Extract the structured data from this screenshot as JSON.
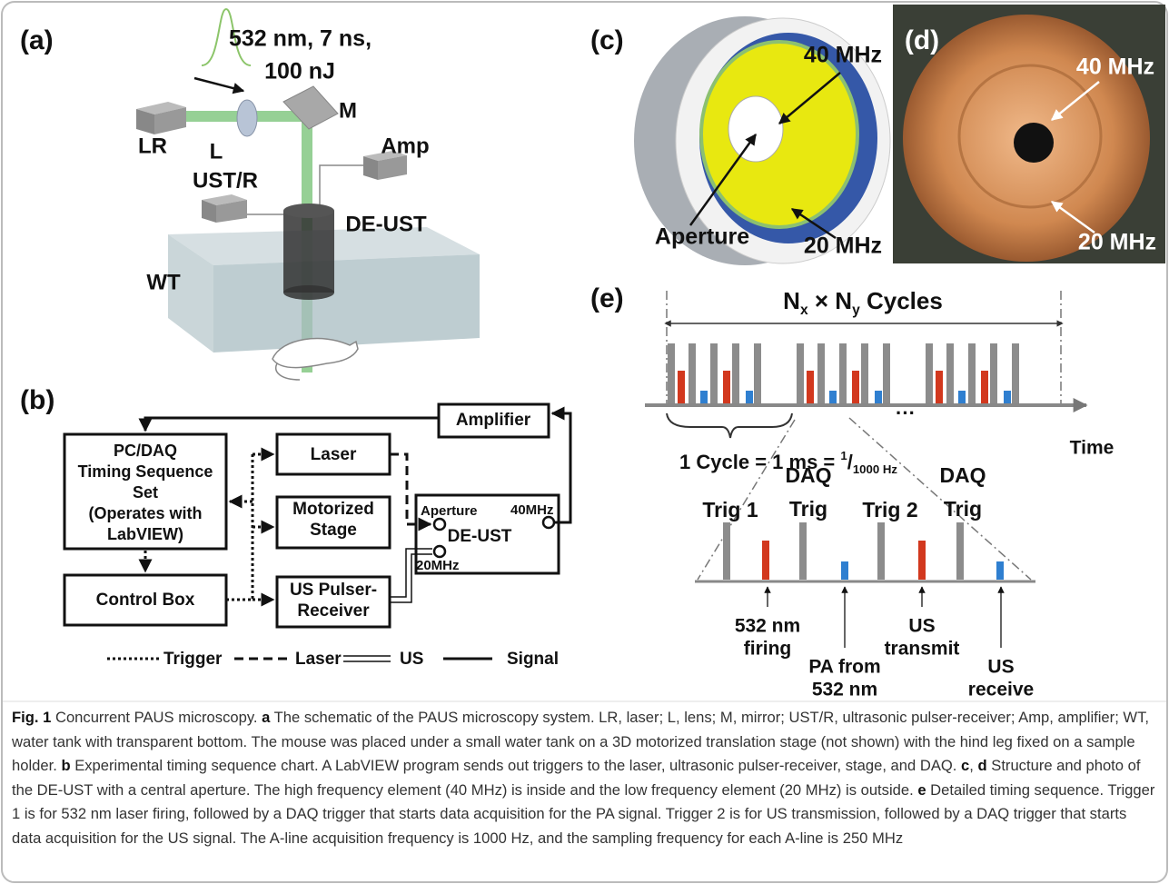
{
  "panel_a": {
    "label": "(a)",
    "pulse_line1": "532 nm, 7 ns,",
    "pulse_line2": "100 nJ",
    "laser": "LR",
    "lens": "L",
    "mirror": "M",
    "amplifier": "Amp",
    "pulser_receiver": "UST/R",
    "transducer": "DE-UST",
    "water_tank": "WT"
  },
  "panel_b": {
    "label": "(b)",
    "amplifier": "Amplifier",
    "pc_daq": [
      "PC/DAQ",
      "Timing Sequence",
      "Set",
      "(Operates with",
      "LabVIEW)"
    ],
    "laser": "Laser",
    "stage": [
      "Motorized",
      "Stage"
    ],
    "transducer": {
      "aperture": "Aperture",
      "high": "40MHz",
      "name": "DE-UST",
      "low": "20MHz"
    },
    "control_box": "Control Box",
    "pulser": [
      "US Pulser-",
      "Receiver"
    ],
    "legend": [
      "Trigger",
      "Laser",
      "US",
      "Signal"
    ]
  },
  "panel_c": {
    "label": "(c)",
    "high": "40 MHz",
    "aperture": "Aperture",
    "low": "20 MHz"
  },
  "panel_d": {
    "label": "(d)",
    "high": "40 MHz",
    "low": "20 MHz"
  },
  "panel_e": {
    "label": "(e)",
    "title": [
      "N",
      "x",
      " × N",
      "y",
      " Cycles"
    ],
    "axis": "Time",
    "ellipsis": "···",
    "cycle": [
      "1 Cycle = 1 ms = ",
      "1",
      "/",
      "1000 Hz"
    ],
    "triggers": [
      [
        "Trig 1"
      ],
      [
        "DAQ",
        "Trig"
      ],
      [
        "Trig 2"
      ],
      [
        "DAQ",
        "Trig"
      ]
    ],
    "events": [
      [
        "532 nm",
        "firing"
      ],
      [
        "PA from",
        "532 nm"
      ],
      [
        "US",
        "transmit"
      ],
      [
        "US",
        "receive"
      ]
    ]
  },
  "caption": [
    "Fig. 1",
    " Concurrent PAUS microscopy. ",
    "a",
    " The schematic of the PAUS microscopy system. LR, laser; L, lens; M, mirror; UST/R, ultrasonic pulser-receiver; Amp, amplifier; WT, water tank with transparent bottom. The mouse was placed under a small water tank on a 3D motorized translation stage (not shown) with the hind leg fixed on a sample holder. ",
    "b",
    " Experimental timing sequence chart. A LabVIEW program sends out triggers to the laser, ultrasonic pulser-receiver, stage, and DAQ. ",
    "c",
    ", ",
    "d",
    " Structure and photo of the DE-UST with a central aperture. The high frequency element (40 MHz) is inside and the low frequency element (20 MHz) is outside. ",
    "e",
    " Detailed timing sequence. Trigger 1 is for 532 nm laser firing, followed by a DAQ trigger that starts data acquisition for the PA signal. Trigger 2 is for US transmission, followed by a DAQ trigger that starts data acquisition for the US signal. The A-line acquisition frequency is 1000 Hz, and the sampling frequency for each A-line is 250 MHz"
  ]
}
